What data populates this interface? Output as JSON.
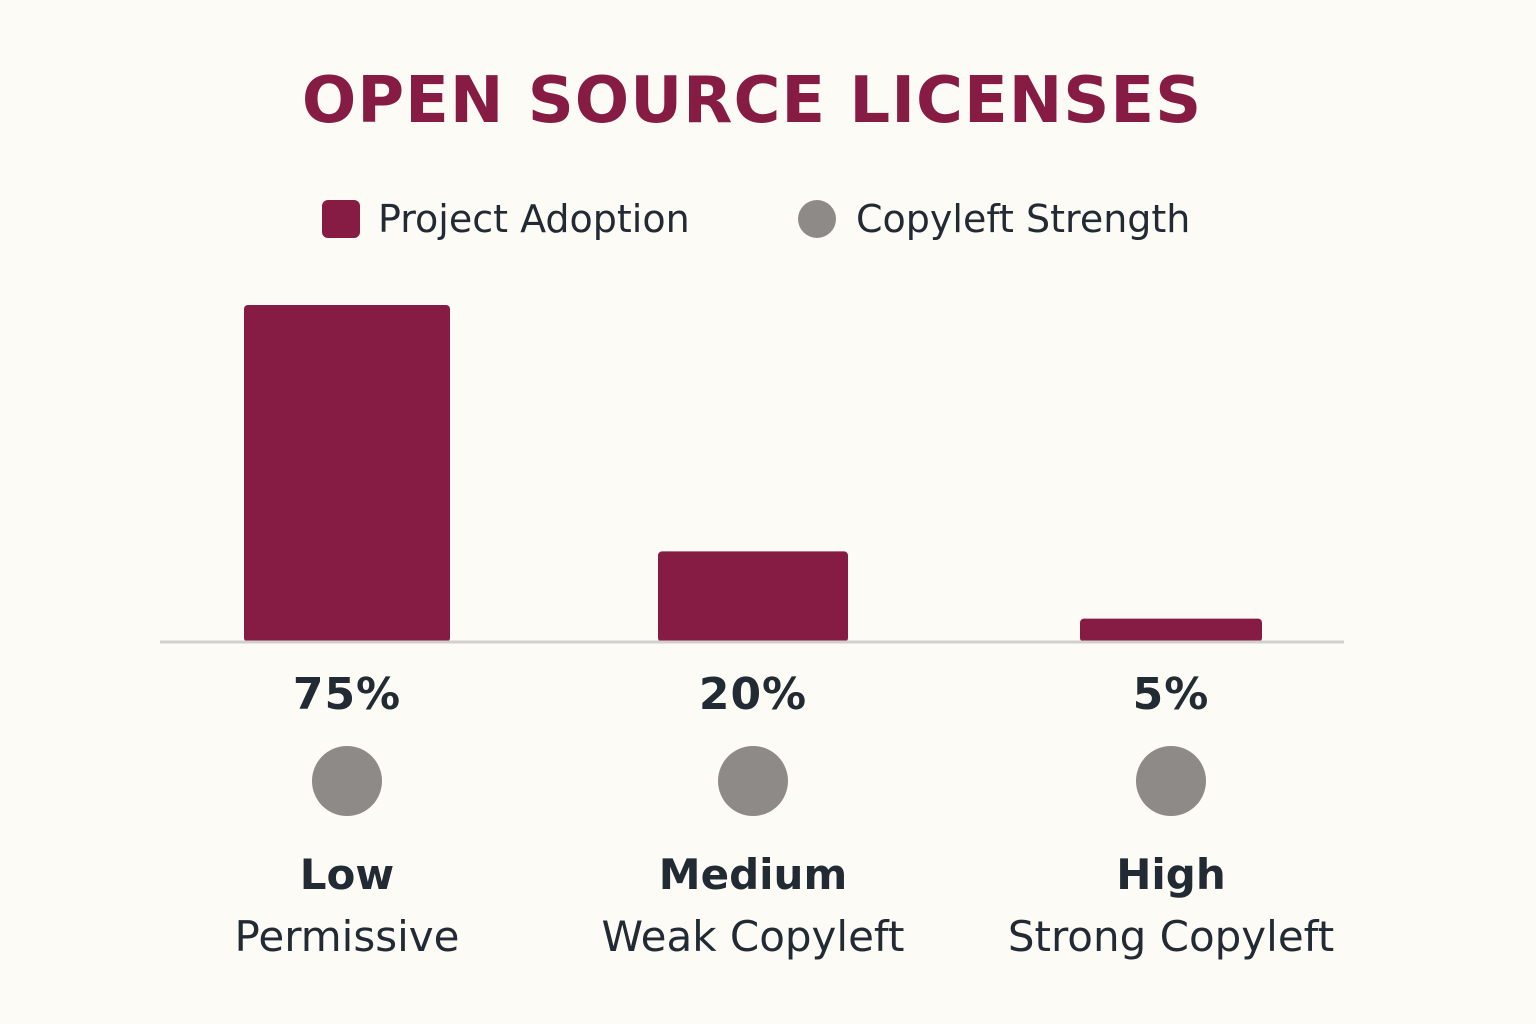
{
  "colors": {
    "background": "#fdfbf6",
    "bar": "#861c44",
    "dot": "#8d8a87",
    "axis": "#d2d0cd",
    "text": "#222a33"
  },
  "chart_data": {
    "type": "bar",
    "title": "OPEN SOURCE LICENSES",
    "legend": [
      {
        "label": "Project Adoption",
        "marker": "square"
      },
      {
        "label": "Copyleft Strength",
        "marker": "circle"
      }
    ],
    "categories": [
      "Permissive",
      "Weak Copyleft",
      "Strong Copyleft"
    ],
    "series": [
      {
        "name": "Project Adoption",
        "values": [
          75,
          20,
          5
        ],
        "value_labels": [
          "75%",
          "20%",
          "5%"
        ]
      }
    ],
    "copyleft_strength": [
      "Low",
      "Medium",
      "High"
    ],
    "ylim": [
      0,
      75
    ],
    "grid": false,
    "xlabel": "",
    "ylabel": ""
  }
}
